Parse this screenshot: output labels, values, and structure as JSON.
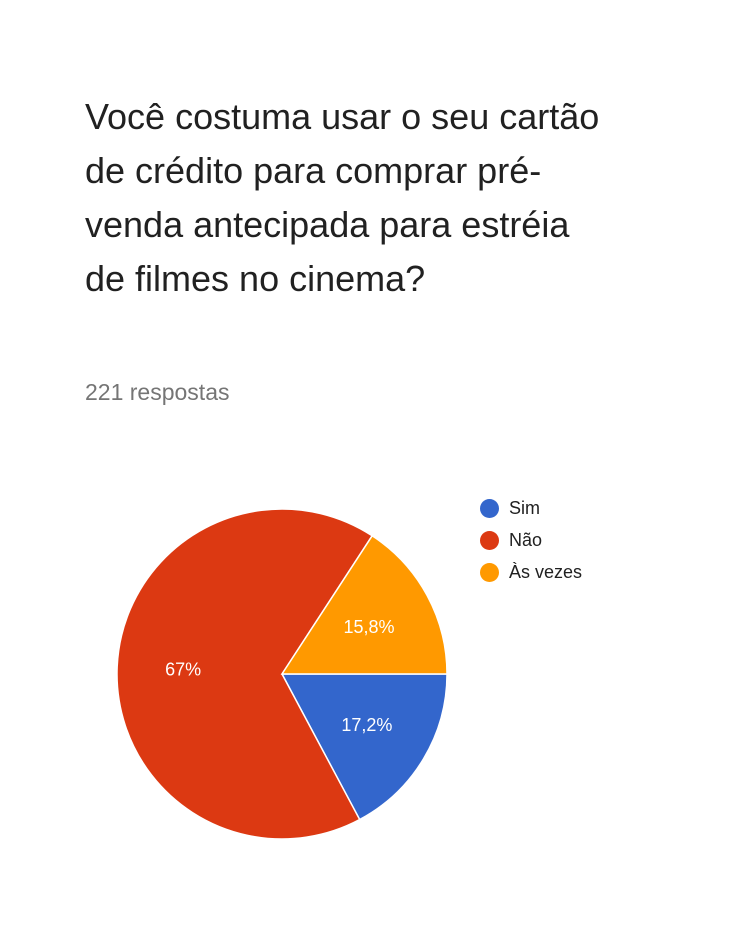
{
  "question": {
    "title": "Você costuma usar o seu cartão de crédito para comprar pré-venda antecipada para estréia de filmes no cinema?",
    "responses": "221 respostas"
  },
  "chart_data": {
    "type": "pie",
    "categories": [
      "Sim",
      "Não",
      "Às vezes"
    ],
    "values": [
      17.2,
      67.0,
      15.8
    ],
    "labels": [
      "17,2%",
      "67%",
      "15,8%"
    ],
    "colors": [
      "#3366cc",
      "#dc3912",
      "#ff9900"
    ],
    "legend_position": "right"
  }
}
